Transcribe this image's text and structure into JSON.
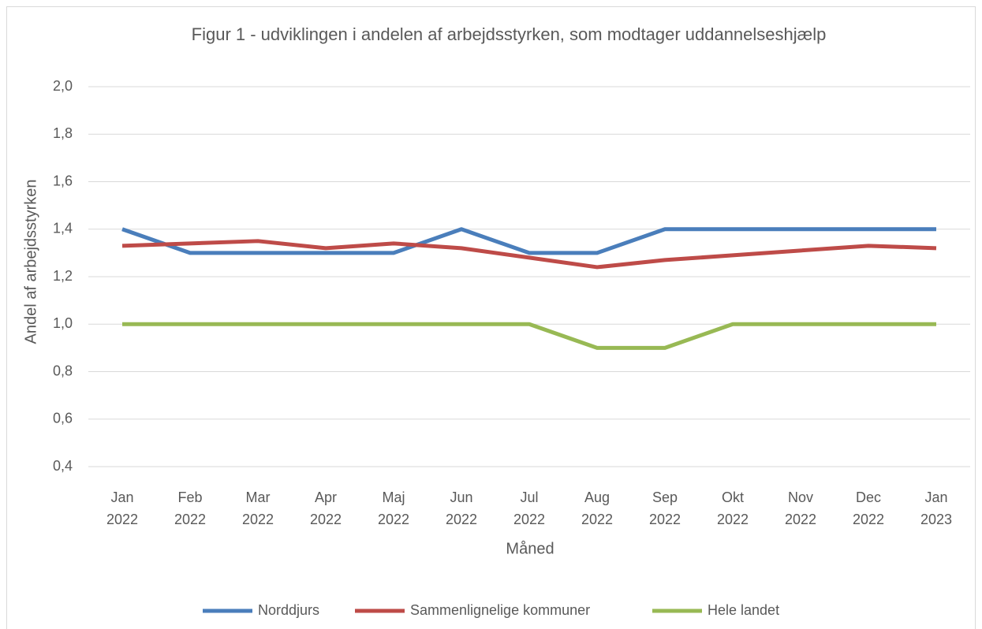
{
  "chart_data": {
    "type": "line",
    "title": "Figur 1 - udviklingen i andelen af arbejdsstyrken, som modtager uddannelseshjælp",
    "x_label": "Måned",
    "y_label": "Andel af arbejdsstyrken",
    "categories": [
      "Jan 2022",
      "Feb 2022",
      "Mar 2022",
      "Apr 2022",
      "Maj 2022",
      "Jun 2022",
      "Jul 2022",
      "Aug 2022",
      "Sep 2022",
      "Okt 2022",
      "Nov 2022",
      "Dec 2022",
      "Jan 2023"
    ],
    "series": [
      {
        "name": "Norddjurs",
        "color": "#4a7ebb",
        "values": [
          1.4,
          1.3,
          1.3,
          1.3,
          1.3,
          1.4,
          1.3,
          1.3,
          1.4,
          1.4,
          1.4,
          1.4,
          1.4
        ]
      },
      {
        "name": "Sammenlignelige kommuner",
        "color": "#be4b48",
        "values": [
          1.33,
          1.34,
          1.35,
          1.32,
          1.34,
          1.32,
          1.28,
          1.24,
          1.27,
          1.29,
          1.31,
          1.33,
          1.32
        ]
      },
      {
        "name": "Hele landet",
        "color": "#98b954",
        "values": [
          1.0,
          1.0,
          1.0,
          1.0,
          1.0,
          1.0,
          1.0,
          0.9,
          0.9,
          1.0,
          1.0,
          1.0,
          1.0
        ]
      }
    ],
    "ylim": [
      0.4,
      2.0
    ],
    "yticks": [
      {
        "value": 0.4,
        "label": "0,4"
      },
      {
        "value": 0.6,
        "label": "0,6"
      },
      {
        "value": 0.8,
        "label": "0,8"
      },
      {
        "value": 1.0,
        "label": "1,0"
      },
      {
        "value": 1.2,
        "label": "1,2"
      },
      {
        "value": 1.4,
        "label": "1,4"
      },
      {
        "value": 1.6,
        "label": "1,6"
      },
      {
        "value": 1.8,
        "label": "1,8"
      },
      {
        "value": 2.0,
        "label": "2,0"
      }
    ],
    "grid": true,
    "legend": "bottom"
  }
}
